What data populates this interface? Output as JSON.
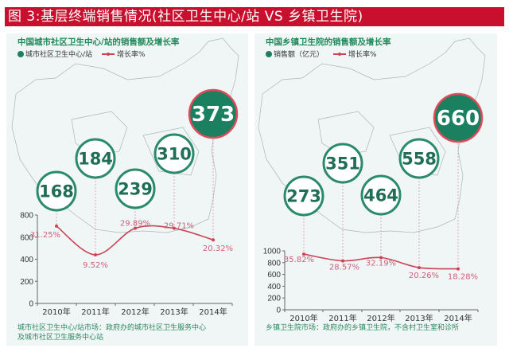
{
  "header": {
    "title": "图 3:基层终端销售情况(社区卫生中心/站 VS 乡镇卫生院)"
  },
  "colors": {
    "title_bg": "#c8102e",
    "accent_green": "#1a8060",
    "line_red": "#c94455",
    "label_red": "#d0607a"
  },
  "chart_data": [
    {
      "type": "line",
      "title": "中国城市社区卫生中心/站的销售额及增长率",
      "legend": [
        "城市社区卫生中心/站",
        "增长率%"
      ],
      "categories": [
        "2010年",
        "2011年",
        "2012年",
        "2013年",
        "2014年"
      ],
      "bubble_values": [
        "168",
        "184",
        "239",
        "310",
        "373"
      ],
      "series": [
        {
          "name": "增长率%",
          "values": [
            700,
            440,
            680,
            680,
            575
          ],
          "labels": [
            "31.25%",
            "9.52%",
            "29.89%",
            "29.71%",
            "20.32%"
          ]
        }
      ],
      "yticks": [
        "0",
        "200",
        "400",
        "600",
        "800"
      ],
      "ylim": [
        0,
        800
      ],
      "note": [
        "城市社区卫生中心/站市场：政府办的城市社区卫生服务中心",
        "及城市社区卫生服务中心站"
      ]
    },
    {
      "type": "line",
      "title": "中国乡镇卫生院的销售额及增长率",
      "legend": [
        "销售额（亿元）",
        "增长率%"
      ],
      "categories": [
        "2010年",
        "2011年",
        "2012年",
        "2013年",
        "2014年"
      ],
      "bubble_values": [
        "273",
        "351",
        "464",
        "558",
        "660"
      ],
      "series": [
        {
          "name": "增长率%",
          "values": [
            945,
            830,
            885,
            715,
            695
          ],
          "labels": [
            "35.82%",
            "28.57%",
            "32.19%",
            "20.26%",
            "18.28%"
          ]
        }
      ],
      "yticks": [
        "0",
        "200",
        "400",
        "600",
        "800",
        "1000"
      ],
      "ylim": [
        0,
        1000
      ],
      "note": [
        "乡镇卫生院市场：政府办的乡镇卫生院，不含村卫生室和诊所"
      ]
    }
  ]
}
